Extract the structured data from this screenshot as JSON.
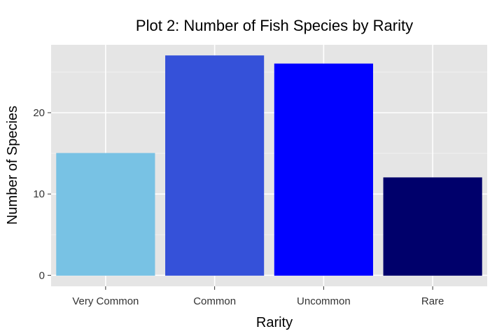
{
  "chart_data": {
    "type": "bar",
    "title": "Plot 2: Number of Fish Species by Rarity",
    "xlabel": "Rarity",
    "ylabel": "Number of Species",
    "categories": [
      "Very Common",
      "Common",
      "Uncommon",
      "Rare"
    ],
    "values": [
      15,
      27,
      26,
      12
    ],
    "colors": [
      "#78c2e4",
      "#3551d9",
      "#0000ff",
      "#00006b"
    ],
    "ylim": [
      -1.35,
      28.35
    ],
    "yticks": [
      0,
      10,
      20
    ],
    "ytick_labels": [
      "0",
      "10",
      "20"
    ],
    "grid": true,
    "panel_background": "#e5e5e5",
    "legend": "none"
  }
}
